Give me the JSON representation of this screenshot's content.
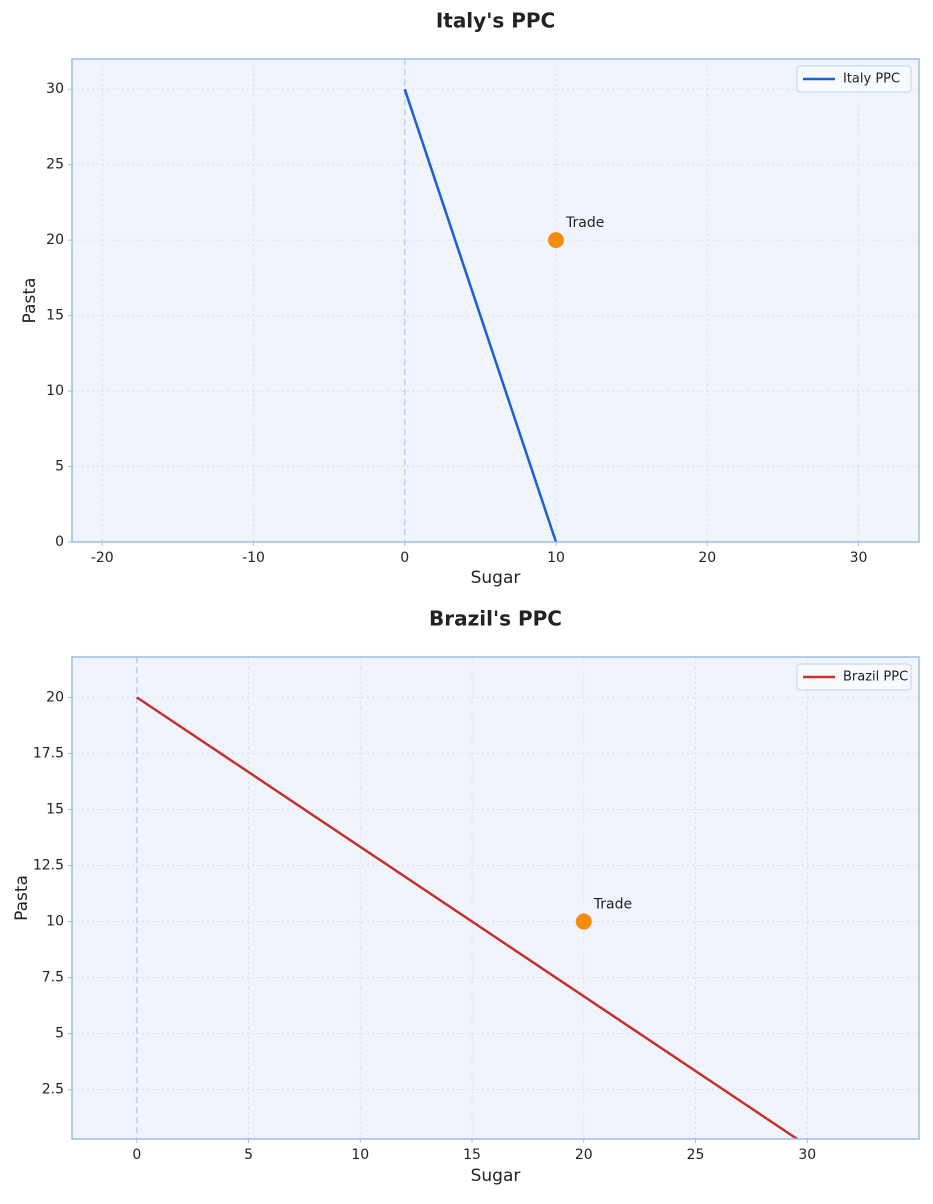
{
  "chart_data": [
    {
      "type": "line",
      "title": "Italy's PPC",
      "x_label": "Sugar",
      "y_label": "Pasta",
      "xlim": [
        -22,
        34
      ],
      "ylim": [
        0,
        32
      ],
      "xticks": [
        -20,
        -10,
        0,
        10,
        20,
        30
      ],
      "yticks": [
        0,
        5,
        10,
        15,
        20,
        25,
        30
      ],
      "grid": true,
      "legend": "upper right",
      "reference_line_x": 0,
      "series": [
        {
          "name": "Italy PPC",
          "color": "#1a5fd6",
          "x": [
            0,
            10
          ],
          "values": [
            30,
            0
          ]
        }
      ],
      "points": [
        {
          "label": "Trade",
          "x": 10,
          "y": 20,
          "color": "#f28c0f"
        }
      ]
    },
    {
      "type": "line",
      "title": "Brazil's PPC",
      "x_label": "Sugar",
      "y_label": "Pasta",
      "xlim": [
        -2.9,
        35
      ],
      "ylim": [
        0.3,
        21.8
      ],
      "xticks": [
        0,
        5,
        10,
        15,
        20,
        25,
        30
      ],
      "yticks": [
        2.5,
        5,
        7.5,
        10,
        12.5,
        15,
        17.5,
        20
      ],
      "grid": true,
      "legend": "upper right",
      "reference_line_x": 0,
      "series": [
        {
          "name": "Brazil PPC",
          "color": "#c8302c",
          "x": [
            0,
            30
          ],
          "values": [
            20,
            0
          ]
        }
      ],
      "points": [
        {
          "label": "Trade",
          "x": 20,
          "y": 10,
          "color": "#f28c0f"
        }
      ]
    }
  ]
}
